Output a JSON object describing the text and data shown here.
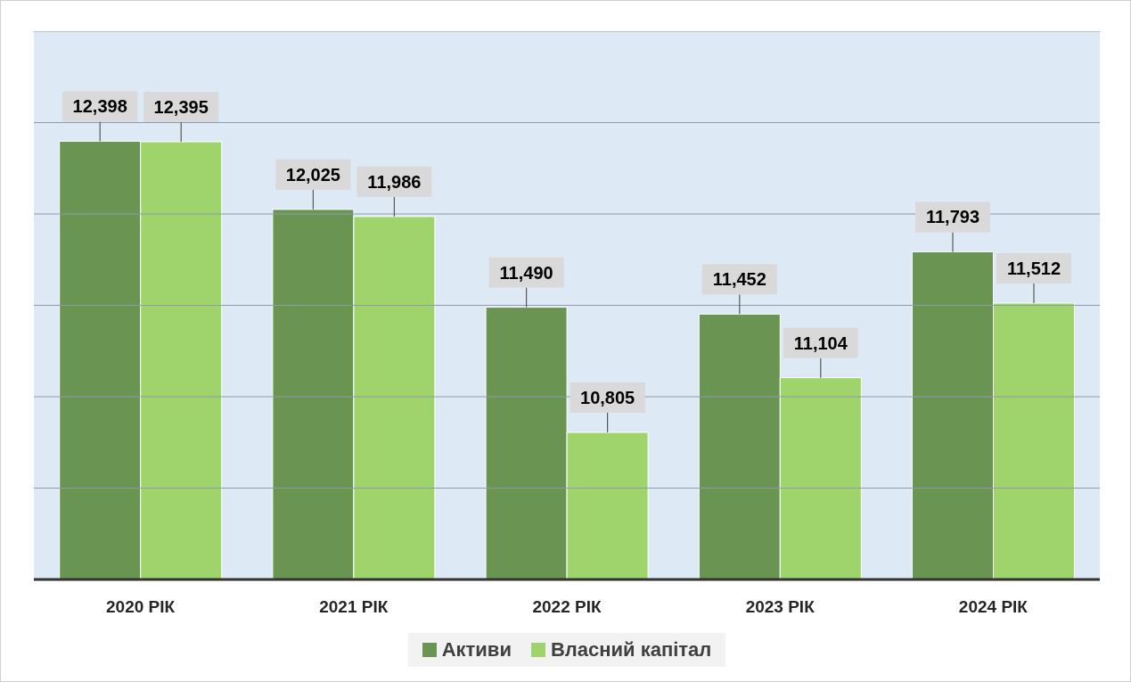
{
  "chart_data": {
    "type": "bar",
    "categories": [
      "2020 РІК",
      "2021 РІК",
      "2022 РІК",
      "2023 РІК",
      "2024 РІК"
    ],
    "series": [
      {
        "name": "Активи",
        "color": "#6a9451",
        "values": [
          12398,
          12025,
          11490,
          11452,
          11793
        ],
        "value_labels": [
          "12,398",
          "12,025",
          "11,490",
          "11,452",
          "11,793"
        ]
      },
      {
        "name": "Власний капітал",
        "color": "#9fd36b",
        "values": [
          12395,
          11986,
          10805,
          11104,
          11512
        ],
        "value_labels": [
          "12,395",
          "11,986",
          "10,805",
          "11,104",
          "11,512"
        ]
      }
    ],
    "ylim": [
      10000,
      13000
    ],
    "yticks": [
      {
        "value": 10000,
        "label": null
      },
      {
        "value": 10500,
        "label": null
      },
      {
        "value": 11000,
        "label": null
      },
      {
        "value": 11500,
        "label": null
      },
      {
        "value": 12000,
        "label": null
      },
      {
        "value": 12500,
        "label": null
      },
      {
        "value": 13000,
        "label": null
      }
    ],
    "tick_labels": "x",
    "grid": "y",
    "legend": "bottom"
  }
}
